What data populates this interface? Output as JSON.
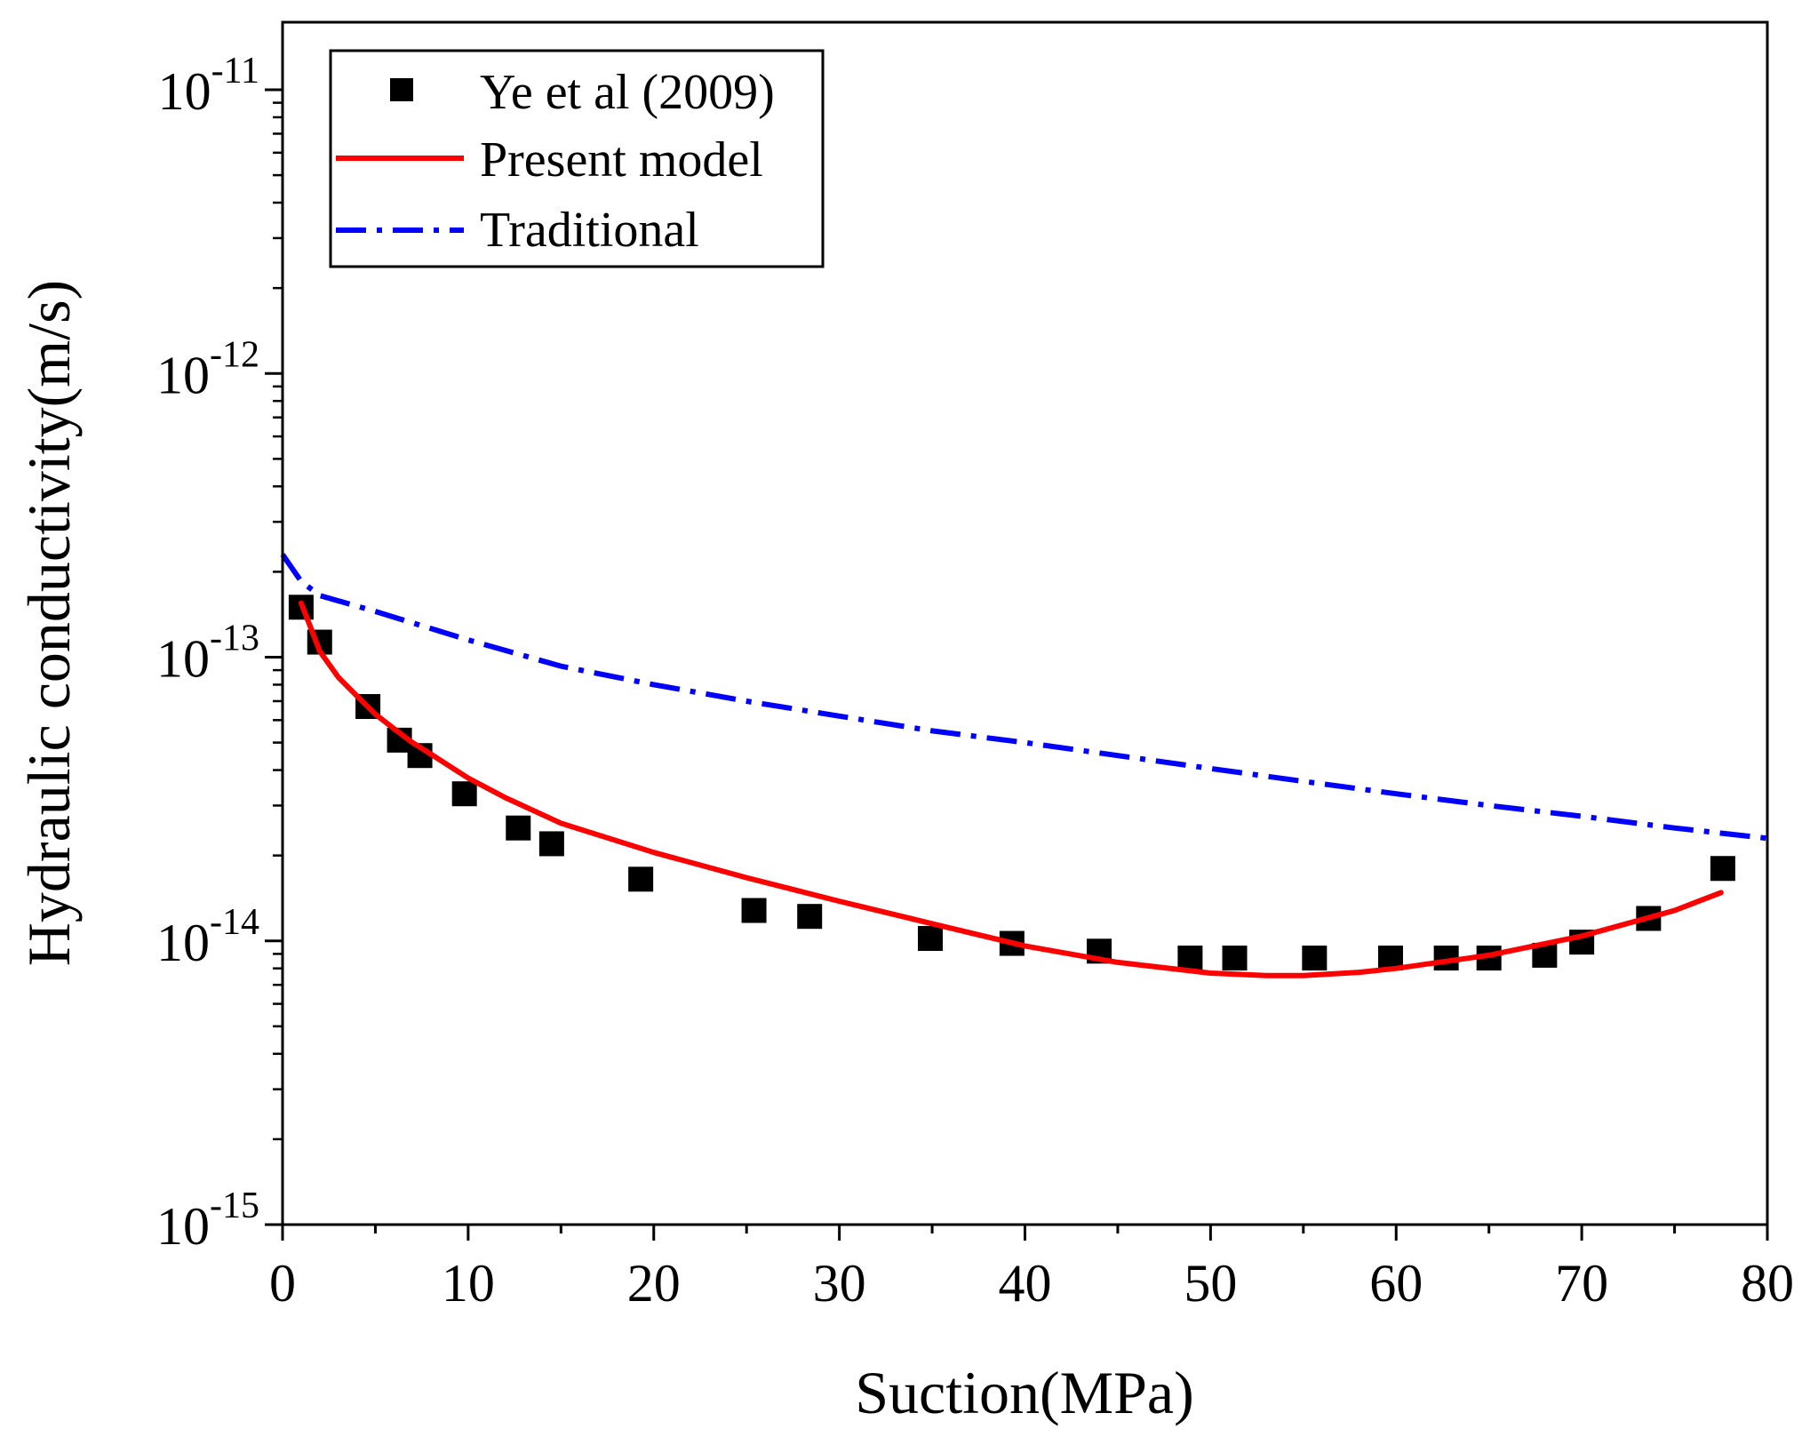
{
  "chart_data": {
    "type": "scatter",
    "title": "",
    "xlabel": "Suction(MPa)",
    "ylabel": "Hydraulic conductivity(m/s)",
    "xlim": [
      0,
      80
    ],
    "ylim": [
      1e-15,
      2e-11
    ],
    "yscale": "log",
    "x_ticks": [
      0,
      10,
      20,
      30,
      40,
      50,
      60,
      70,
      80
    ],
    "x_tick_labels": [
      "0",
      "10",
      "20",
      "30",
      "40",
      "50",
      "60",
      "70",
      "80"
    ],
    "y_major_ticks": [
      {
        "value": 1e-11,
        "base": "10",
        "exponent": "-11"
      },
      {
        "value": 1e-12,
        "base": "10",
        "exponent": "-12"
      },
      {
        "value": 1e-13,
        "base": "10",
        "exponent": "-13"
      },
      {
        "value": 1e-14,
        "base": "10",
        "exponent": "-14"
      },
      {
        "value": 1e-15,
        "base": "10",
        "exponent": "-15"
      }
    ],
    "legend_position": "top-left",
    "series": [
      {
        "name": "Ye et al (2009)",
        "style": "markers",
        "marker": "square",
        "color": "#000000",
        "x": [
          1.0,
          2.0,
          4.6,
          6.3,
          7.4,
          9.8,
          12.7,
          14.5,
          19.3,
          25.4,
          28.4,
          34.9,
          39.3,
          44.0,
          48.9,
          51.3,
          55.6,
          59.7,
          62.7,
          65.0,
          68.0,
          70.0,
          73.6,
          77.6
        ],
        "y": [
          1.5e-13,
          1.13e-13,
          6.7e-14,
          5.1e-14,
          4.5e-14,
          3.3e-14,
          2.5e-14,
          2.2e-14,
          1.65e-14,
          1.28e-14,
          1.22e-14,
          1.02e-14,
          9.8e-15,
          9.2e-15,
          8.7e-15,
          8.7e-15,
          8.7e-15,
          8.7e-15,
          8.7e-15,
          8.7e-15,
          8.9e-15,
          9.9e-15,
          1.2e-14,
          1.8e-14
        ]
      },
      {
        "name": "Present model",
        "style": "solid",
        "color": "#ff0000",
        "x": [
          1.0,
          1.5,
          2,
          3,
          4,
          5,
          6,
          7,
          8,
          10,
          12,
          15,
          20,
          25,
          30,
          35,
          40,
          45,
          50,
          53,
          55,
          58,
          60,
          65,
          70,
          75,
          77.5
        ],
        "y": [
          1.55e-13,
          1.28e-13,
          1.05e-13,
          8.5e-14,
          7.3e-14,
          6.3e-14,
          5.6e-14,
          5e-14,
          4.55e-14,
          3.75e-14,
          3.2e-14,
          2.6e-14,
          2.05e-14,
          1.67e-14,
          1.38e-14,
          1.15e-14,
          9.6e-15,
          8.4e-15,
          7.7e-15,
          7.55e-15,
          7.55e-15,
          7.75e-15,
          8e-15,
          8.9e-15,
          1.04e-14,
          1.28e-14,
          1.48e-14
        ]
      },
      {
        "name": "Traditional",
        "style": "dashdot",
        "color": "#0000ff",
        "x": [
          0,
          1,
          2,
          5,
          10,
          15,
          20,
          25,
          30,
          35,
          40,
          45,
          50,
          55,
          60,
          65,
          70,
          75,
          80
        ],
        "y": [
          2.3e-13,
          1.85e-13,
          1.65e-13,
          1.45e-13,
          1.15e-13,
          9.3e-14,
          8e-14,
          7e-14,
          6.2e-14,
          5.5e-14,
          5e-14,
          4.5e-14,
          4.05e-14,
          3.65e-14,
          3.3e-14,
          3e-14,
          2.75e-14,
          2.5e-14,
          2.3e-14
        ]
      }
    ]
  }
}
